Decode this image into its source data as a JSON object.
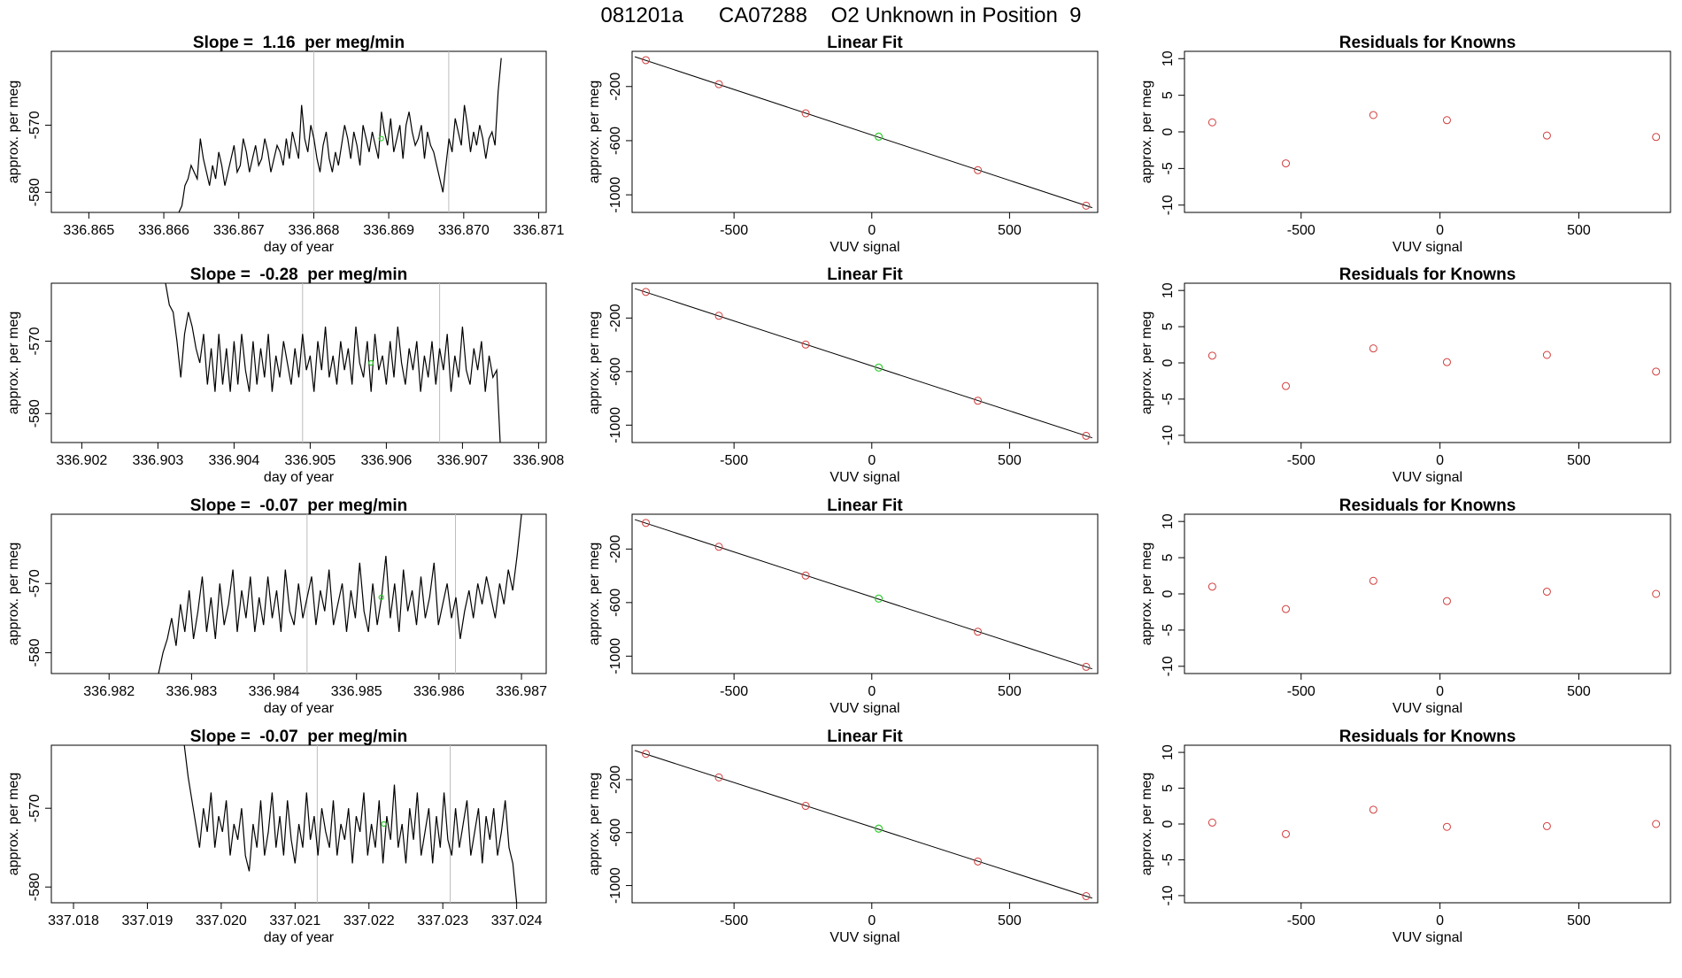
{
  "figure": {
    "title": "081201a      CA07288    O2 Unknown in Position  9"
  },
  "chart_data": [
    {
      "type": "line",
      "panel": "timeseries",
      "row": 1,
      "title": "Slope =  1.16  per meg/min",
      "xlabel": "day of year",
      "ylabel": "approx. per meg",
      "xlim": [
        336.8645,
        336.8711
      ],
      "ylim": [
        -583,
        -559
      ],
      "xticks": [
        336.865,
        336.866,
        336.867,
        336.868,
        336.869,
        336.87,
        336.871
      ],
      "xtick_labels": [
        "336.865",
        "336.866",
        "336.867",
        "336.868",
        "336.869",
        "336.870",
        "336.871"
      ],
      "yticks": [
        -570,
        -580
      ],
      "ytick_labels": [
        "-570",
        "-580"
      ],
      "vlines": [
        336.868,
        336.8698
      ],
      "series": {
        "x_start": 336.8662,
        "x_end": 336.8705,
        "y": [
          -583,
          -582,
          -579,
          -578,
          -576,
          -577,
          -578,
          -572,
          -575,
          -577,
          -579,
          -576,
          -578,
          -574,
          -576,
          -579,
          -577,
          -575,
          -573,
          -577,
          -576,
          -572,
          -574,
          -577,
          -575,
          -573,
          -576,
          -575,
          -572,
          -574,
          -577,
          -575,
          -573,
          -574,
          -576,
          -572,
          -575,
          -571,
          -573,
          -575,
          -567,
          -572,
          -574,
          -570,
          -572,
          -575,
          -577,
          -573,
          -571,
          -575,
          -577,
          -574,
          -576,
          -573,
          -570,
          -572,
          -575,
          -571,
          -573,
          -576,
          -570,
          -572,
          -574,
          -571,
          -573,
          -575,
          -568,
          -571,
          -573,
          -569,
          -574,
          -572,
          -570,
          -575,
          -570,
          -568,
          -571,
          -573,
          -572,
          -570,
          -575,
          -571,
          -573,
          -574,
          -576,
          -578,
          -580,
          -576,
          -572,
          -574,
          -569,
          -571,
          -573,
          -567,
          -570,
          -574,
          -571,
          -573,
          -570,
          -572,
          -575,
          -572,
          -571,
          -573,
          -565,
          -560
        ]
      },
      "marker": {
        "x": 336.8689,
        "y": -572,
        "color": "#00cc00"
      }
    },
    {
      "type": "scatter",
      "panel": "linear_fit",
      "row": 1,
      "title": "Linear Fit",
      "xlabel": "VUV signal",
      "ylabel": "approx. per meg",
      "xlim": [
        -870,
        820
      ],
      "ylim": [
        -1130,
        60
      ],
      "xticks": [
        -500,
        0,
        500
      ],
      "xtick_labels": [
        "-500",
        "0",
        "500"
      ],
      "yticks": [
        -200,
        -600,
        -1000
      ],
      "ytick_labels": [
        "-200",
        "-600",
        "-1000"
      ],
      "line": {
        "x": [
          -860,
          800
        ],
        "y": [
          20,
          -1095
        ]
      },
      "points": [
        {
          "x": -820,
          "y": -5
        },
        {
          "x": -555,
          "y": -183
        },
        {
          "x": -240,
          "y": -398
        },
        {
          "x": 385,
          "y": -818
        },
        {
          "x": 778,
          "y": -1080
        }
      ],
      "unknown": {
        "x": 25,
        "y": -570
      }
    },
    {
      "type": "scatter",
      "panel": "residuals",
      "row": 1,
      "title": "Residuals for Knowns",
      "xlabel": "VUV signal",
      "ylabel": "approx. per meg",
      "xlim": [
        -920,
        830
      ],
      "ylim": [
        -11,
        11
      ],
      "xticks": [
        -500,
        0,
        500
      ],
      "xtick_labels": [
        "-500",
        "0",
        "500"
      ],
      "yticks": [
        10,
        5,
        0,
        -5,
        -10
      ],
      "ytick_labels": [
        "10",
        "5",
        "0",
        "-5",
        "-10"
      ],
      "points": [
        {
          "x": -820,
          "y": 1.3
        },
        {
          "x": -555,
          "y": -4.3
        },
        {
          "x": -240,
          "y": 2.3
        },
        {
          "x": 25,
          "y": 1.6
        },
        {
          "x": 385,
          "y": -0.5
        },
        {
          "x": 778,
          "y": -0.7
        }
      ]
    },
    {
      "type": "line",
      "panel": "timeseries",
      "row": 2,
      "title": "Slope =  -0.28  per meg/min",
      "xlabel": "day of year",
      "ylabel": "approx. per meg",
      "xlim": [
        336.9016,
        336.9081
      ],
      "ylim": [
        -584,
        -562
      ],
      "xticks": [
        336.902,
        336.903,
        336.904,
        336.905,
        336.906,
        336.907,
        336.908
      ],
      "xtick_labels": [
        "336.902",
        "336.903",
        "336.904",
        "336.905",
        "336.906",
        "336.907",
        "336.908"
      ],
      "yticks": [
        -570,
        -580
      ],
      "ytick_labels": [
        "-570",
        "-580"
      ],
      "vlines": [
        336.9049,
        336.9067
      ],
      "series": {
        "x_start": 336.9031,
        "x_end": 336.9075,
        "y": [
          -562,
          -565,
          -566,
          -570,
          -575,
          -569,
          -566,
          -568,
          -571,
          -573,
          -569,
          -576,
          -571,
          -577,
          -569,
          -576,
          -571,
          -577,
          -570,
          -576,
          -569,
          -574,
          -577,
          -570,
          -576,
          -571,
          -575,
          -569,
          -577,
          -572,
          -575,
          -570,
          -573,
          -576,
          -571,
          -575,
          -569,
          -574,
          -572,
          -577,
          -570,
          -574,
          -568,
          -575,
          -572,
          -576,
          -570,
          -574,
          -571,
          -576,
          -568,
          -573,
          -575,
          -570,
          -577,
          -569,
          -574,
          -572,
          -576,
          -570,
          -575,
          -568,
          -573,
          -576,
          -571,
          -574,
          -570,
          -577,
          -572,
          -575,
          -570,
          -576,
          -571,
          -574,
          -569,
          -577,
          -572,
          -575,
          -568,
          -574,
          -576,
          -571,
          -574,
          -570,
          -577,
          -572,
          -575,
          -574,
          -585
        ]
      },
      "marker": {
        "x": 336.9058,
        "y": -573,
        "color": "#00cc00"
      }
    },
    {
      "type": "scatter",
      "panel": "linear_fit",
      "row": 2,
      "title": "Linear Fit",
      "xlabel": "VUV signal",
      "ylabel": "approx. per meg",
      "xlim": [
        -870,
        820
      ],
      "ylim": [
        -1130,
        60
      ],
      "xticks": [
        -500,
        0,
        500
      ],
      "xtick_labels": [
        "-500",
        "0",
        "500"
      ],
      "yticks": [
        -200,
        -600,
        -1000
      ],
      "ytick_labels": [
        "-200",
        "-600",
        "-1000"
      ],
      "line": {
        "x": [
          -860,
          800
        ],
        "y": [
          20,
          -1095
        ]
      },
      "points": [
        {
          "x": -820,
          "y": -5
        },
        {
          "x": -555,
          "y": -183
        },
        {
          "x": -240,
          "y": -398
        },
        {
          "x": 385,
          "y": -818
        },
        {
          "x": 778,
          "y": -1080
        }
      ],
      "unknown": {
        "x": 25,
        "y": -570
      }
    },
    {
      "type": "scatter",
      "panel": "residuals",
      "row": 2,
      "title": "Residuals for Knowns",
      "xlabel": "VUV signal",
      "ylabel": "approx. per meg",
      "xlim": [
        -920,
        830
      ],
      "ylim": [
        -11,
        11
      ],
      "xticks": [
        -500,
        0,
        500
      ],
      "xtick_labels": [
        "-500",
        "0",
        "500"
      ],
      "yticks": [
        10,
        5,
        0,
        -5,
        -10
      ],
      "ytick_labels": [
        "10",
        "5",
        "0",
        "-5",
        "-10"
      ],
      "points": [
        {
          "x": -820,
          "y": 1.0
        },
        {
          "x": -555,
          "y": -3.2
        },
        {
          "x": -240,
          "y": 2.0
        },
        {
          "x": 25,
          "y": 0.1
        },
        {
          "x": 385,
          "y": 1.1
        },
        {
          "x": 778,
          "y": -1.2
        }
      ]
    },
    {
      "type": "line",
      "panel": "timeseries",
      "row": 3,
      "title": "Slope =  -0.07  per meg/min",
      "xlabel": "day of year",
      "ylabel": "approx. per meg",
      "xlim": [
        336.9813,
        336.9873
      ],
      "ylim": [
        -583,
        -560
      ],
      "xticks": [
        336.982,
        336.983,
        336.984,
        336.985,
        336.986,
        336.987
      ],
      "xtick_labels": [
        "336.982",
        "336.983",
        "336.984",
        "336.985",
        "336.986",
        "336.987"
      ],
      "yticks": [
        -570,
        -580
      ],
      "ytick_labels": [
        "-570",
        "-580"
      ],
      "vlines": [
        336.9844,
        336.9862
      ],
      "series": {
        "x_start": 336.9826,
        "x_end": 336.987,
        "y": [
          -583,
          -580,
          -578,
          -575,
          -579,
          -573,
          -577,
          -571,
          -578,
          -574,
          -569,
          -577,
          -572,
          -578,
          -570,
          -576,
          -573,
          -568,
          -577,
          -571,
          -575,
          -569,
          -577,
          -572,
          -576,
          -569,
          -575,
          -571,
          -577,
          -568,
          -574,
          -576,
          -570,
          -575,
          -572,
          -569,
          -576,
          -571,
          -574,
          -568,
          -576,
          -573,
          -570,
          -577,
          -571,
          -575,
          -567,
          -574,
          -577,
          -570,
          -576,
          -572,
          -566,
          -575,
          -570,
          -577,
          -568,
          -574,
          -571,
          -576,
          -569,
          -575,
          -572,
          -567,
          -576,
          -573,
          -570,
          -575,
          -572,
          -578,
          -574,
          -571,
          -575,
          -570,
          -573,
          -569,
          -572,
          -575,
          -570,
          -573,
          -568,
          -571,
          -566,
          -560
        ]
      },
      "marker": {
        "x": 336.9853,
        "y": -572,
        "color": "#00cc00"
      }
    },
    {
      "type": "scatter",
      "panel": "linear_fit",
      "row": 3,
      "title": "Linear Fit",
      "xlabel": "VUV signal",
      "ylabel": "approx. per meg",
      "xlim": [
        -870,
        820
      ],
      "ylim": [
        -1130,
        60
      ],
      "xticks": [
        -500,
        0,
        500
      ],
      "xtick_labels": [
        "-500",
        "0",
        "500"
      ],
      "yticks": [
        -200,
        -600,
        -1000
      ],
      "ytick_labels": [
        "-200",
        "-600",
        "-1000"
      ],
      "line": {
        "x": [
          -860,
          800
        ],
        "y": [
          20,
          -1095
        ]
      },
      "points": [
        {
          "x": -820,
          "y": -5
        },
        {
          "x": -555,
          "y": -183
        },
        {
          "x": -240,
          "y": -398
        },
        {
          "x": 385,
          "y": -818
        },
        {
          "x": 778,
          "y": -1080
        }
      ],
      "unknown": {
        "x": 25,
        "y": -570
      }
    },
    {
      "type": "scatter",
      "panel": "residuals",
      "row": 3,
      "title": "Residuals for Knowns",
      "xlabel": "VUV signal",
      "ylabel": "approx. per meg",
      "xlim": [
        -920,
        830
      ],
      "ylim": [
        -11,
        11
      ],
      "xticks": [
        -500,
        0,
        500
      ],
      "xtick_labels": [
        "-500",
        "0",
        "500"
      ],
      "yticks": [
        10,
        5,
        0,
        -5,
        -10
      ],
      "ytick_labels": [
        "10",
        "5",
        "0",
        "-5",
        "-10"
      ],
      "points": [
        {
          "x": -820,
          "y": 1.0
        },
        {
          "x": -555,
          "y": -2.1
        },
        {
          "x": -240,
          "y": 1.8
        },
        {
          "x": 25,
          "y": -1.0
        },
        {
          "x": 385,
          "y": 0.3
        },
        {
          "x": 778,
          "y": 0.0
        }
      ]
    },
    {
      "type": "line",
      "panel": "timeseries",
      "row": 4,
      "title": "Slope =  -0.07  per meg/min",
      "xlabel": "day of year",
      "ylabel": "approx. per meg",
      "xlim": [
        337.0177,
        337.0244
      ],
      "ylim": [
        -582,
        -562
      ],
      "xticks": [
        337.018,
        337.019,
        337.02,
        337.021,
        337.022,
        337.023,
        337.024
      ],
      "xtick_labels": [
        "337.018",
        "337.019",
        "337.020",
        "337.021",
        "337.022",
        "337.023",
        "337.024"
      ],
      "yticks": [
        -570,
        -580
      ],
      "ytick_labels": [
        "-570",
        "-580"
      ],
      "vlines": [
        337.0213,
        337.0231
      ],
      "series": {
        "x_start": 337.0195,
        "x_end": 337.024,
        "y": [
          -562,
          -566,
          -569,
          -572,
          -575,
          -570,
          -573,
          -568,
          -575,
          -571,
          -573,
          -569,
          -576,
          -572,
          -574,
          -570,
          -576,
          -578,
          -572,
          -575,
          -569,
          -576,
          -573,
          -568,
          -575,
          -571,
          -576,
          -569,
          -574,
          -577,
          -572,
          -575,
          -568,
          -574,
          -571,
          -576,
          -570,
          -573,
          -575,
          -569,
          -576,
          -572,
          -574,
          -570,
          -577,
          -571,
          -573,
          -568,
          -576,
          -572,
          -575,
          -569,
          -577,
          -571,
          -574,
          -567,
          -575,
          -572,
          -577,
          -570,
          -574,
          -568,
          -576,
          -573,
          -570,
          -577,
          -571,
          -575,
          -568,
          -574,
          -576,
          -570,
          -575,
          -572,
          -569,
          -576,
          -573,
          -570,
          -577,
          -571,
          -574,
          -570,
          -576,
          -573,
          -569,
          -575,
          -577,
          -582
        ]
      },
      "marker": {
        "x": 337.0222,
        "y": -572,
        "color": "#00cc00"
      }
    },
    {
      "type": "scatter",
      "panel": "linear_fit",
      "row": 4,
      "title": "Linear Fit",
      "xlabel": "VUV signal",
      "ylabel": "approx. per meg",
      "xlim": [
        -870,
        820
      ],
      "ylim": [
        -1130,
        60
      ],
      "xticks": [
        -500,
        0,
        500
      ],
      "xtick_labels": [
        "-500",
        "0",
        "500"
      ],
      "yticks": [
        -200,
        -600,
        -1000
      ],
      "ytick_labels": [
        "-200",
        "-600",
        "-1000"
      ],
      "line": {
        "x": [
          -860,
          800
        ],
        "y": [
          20,
          -1095
        ]
      },
      "points": [
        {
          "x": -820,
          "y": -5
        },
        {
          "x": -555,
          "y": -183
        },
        {
          "x": -240,
          "y": -398
        },
        {
          "x": 385,
          "y": -818
        },
        {
          "x": 778,
          "y": -1080
        }
      ],
      "unknown": {
        "x": 25,
        "y": -570
      }
    },
    {
      "type": "scatter",
      "panel": "residuals",
      "row": 4,
      "title": "Residuals for Knowns",
      "xlabel": "VUV signal",
      "ylabel": "approx. per meg",
      "xlim": [
        -920,
        830
      ],
      "ylim": [
        -11,
        11
      ],
      "xticks": [
        -500,
        0,
        500
      ],
      "xtick_labels": [
        "-500",
        "0",
        "500"
      ],
      "yticks": [
        10,
        5,
        0,
        -5,
        -10
      ],
      "ytick_labels": [
        "10",
        "5",
        "0",
        "-5",
        "-10"
      ],
      "points": [
        {
          "x": -820,
          "y": 0.2
        },
        {
          "x": -555,
          "y": -1.4
        },
        {
          "x": -240,
          "y": 2.0
        },
        {
          "x": 25,
          "y": -0.4
        },
        {
          "x": 385,
          "y": -0.3
        },
        {
          "x": 778,
          "y": 0.0
        }
      ]
    }
  ],
  "colors": {
    "known_point": "#d23c3c",
    "unknown_point": "#2ecc2e",
    "vline": "#bdbdbd",
    "line": "#000000"
  }
}
